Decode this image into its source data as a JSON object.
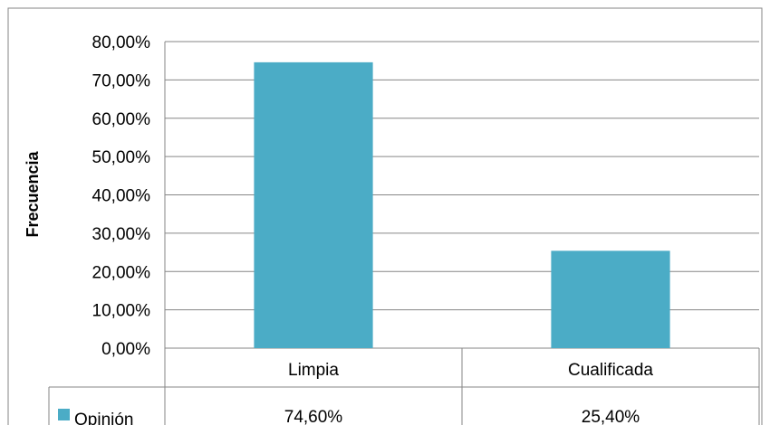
{
  "chart_data": {
    "type": "bar",
    "categories": [
      "Limpia",
      "Cualificada"
    ],
    "series": [
      {
        "name": "Opinión",
        "values": [
          74.6,
          25.4
        ],
        "value_labels": [
          "74,60%",
          "25,40%"
        ]
      }
    ],
    "ylabel": "Frecuencia",
    "ylim": [
      0,
      80
    ],
    "y_ticks": [
      0,
      10,
      20,
      30,
      40,
      50,
      60,
      70,
      80
    ],
    "y_tick_labels": [
      "0,00%",
      "10,00%",
      "20,00%",
      "30,00%",
      "40,00%",
      "50,00%",
      "60,00%",
      "70,00%",
      "80,00%"
    ],
    "grid": true,
    "legend": "data-table",
    "bar_color": "#4bacc6",
    "gridline_color": "#868686",
    "border_color": "#868686"
  }
}
